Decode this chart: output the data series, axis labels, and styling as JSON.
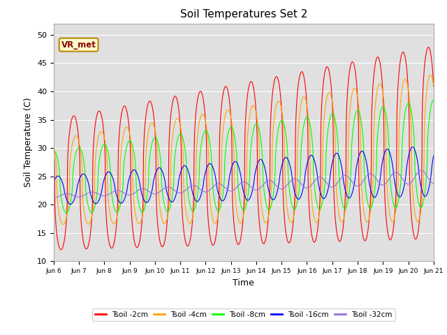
{
  "title": "Soil Temperatures Set 2",
  "xlabel": "Time",
  "ylabel": "Soil Temperature (C)",
  "ylim": [
    10,
    52
  ],
  "yticks": [
    10,
    15,
    20,
    25,
    30,
    35,
    40,
    45,
    50
  ],
  "xtick_labels": [
    "Jun 6",
    "Jun 7",
    "Jun 8",
    "Jun 9",
    "Jun 10",
    "Jun 11",
    "Jun 12",
    "Jun 13",
    "Jun 14",
    "Jun 15",
    "Jun 16",
    "Jun 17",
    "Jun 18",
    "Jun 19",
    "Jun 20",
    "Jun 21"
  ],
  "line_colors": [
    "red",
    "orange",
    "lime",
    "blue",
    "mediumpurple"
  ],
  "line_labels": [
    "Tsoil -2cm",
    "Tsoil -4cm",
    "Tsoil -8cm",
    "Tsoil -16cm",
    "Tsoil -32cm"
  ],
  "annotation_text": "VR_met",
  "title_fontsize": 11,
  "axis_fontsize": 9,
  "tick_fontsize": 8
}
